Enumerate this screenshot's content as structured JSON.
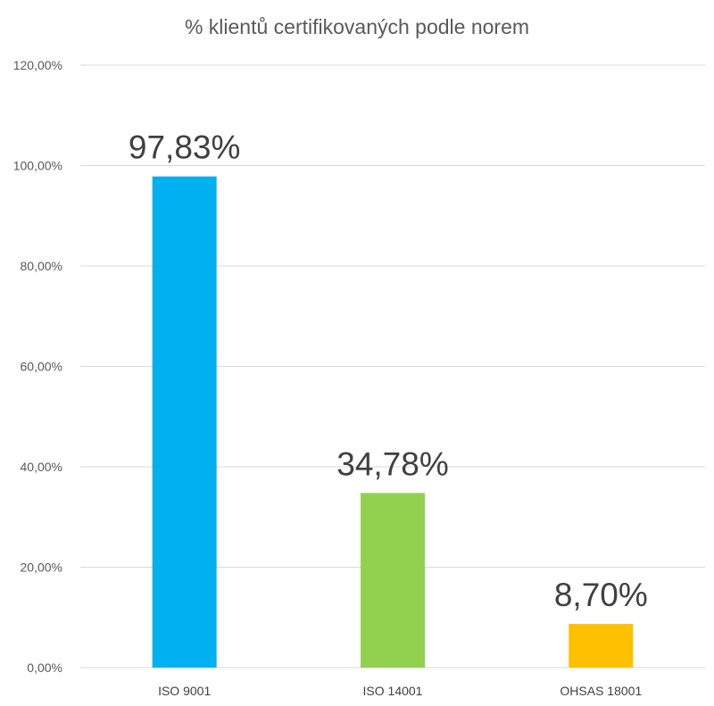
{
  "chart_data": {
    "type": "bar",
    "title": "% klientů certifikovaných podle norem",
    "xlabel": "",
    "ylabel": "",
    "categories": [
      "ISO 9001",
      "ISO 14001",
      "OHSAS 18001"
    ],
    "values": [
      97.83,
      34.78,
      8.7
    ],
    "data_labels": [
      "97,83%",
      "34,78%",
      "8,70%"
    ],
    "colors": [
      "#00b0f0",
      "#92d050",
      "#ffc000"
    ],
    "ylim": [
      0,
      120
    ],
    "yticks": [
      0,
      20,
      40,
      60,
      80,
      100,
      120
    ],
    "ytick_labels": [
      "0,00%",
      "20,00%",
      "40,00%",
      "60,00%",
      "80,00%",
      "100,00%",
      "120,00%"
    ],
    "grid": true,
    "legend": "none"
  }
}
